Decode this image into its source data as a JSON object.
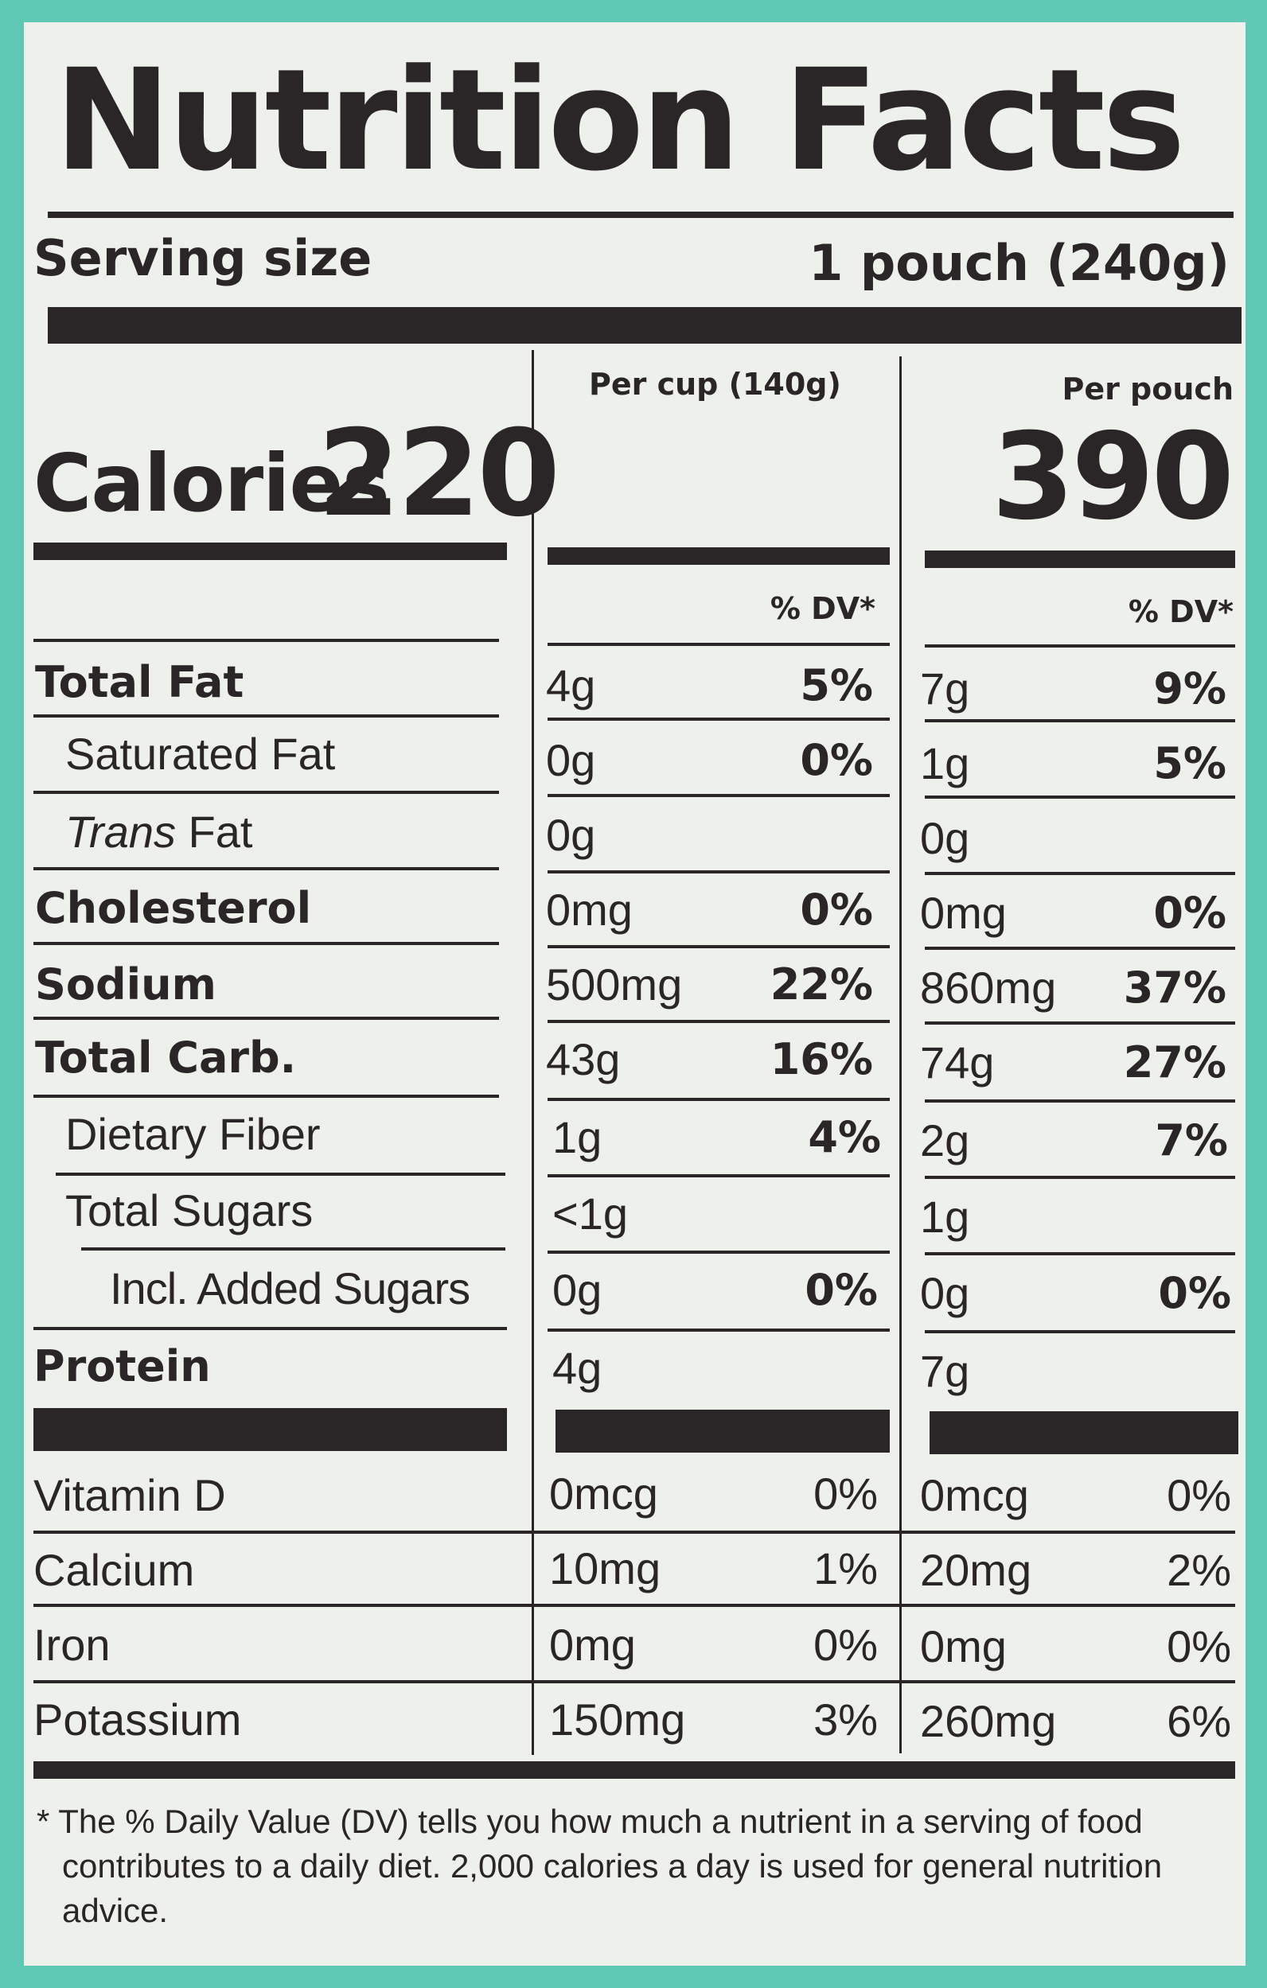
{
  "title": "Nutrition Facts",
  "serving": {
    "label": "Serving size",
    "value": "1 pouch (240g)"
  },
  "columns": {
    "per_cup": "Per cup (140g)",
    "per_pouch": "Per pouch"
  },
  "calories": {
    "label": "Calories",
    "per_cup": "220",
    "per_pouch": "390"
  },
  "dv_header": "% DV*",
  "nutrients": [
    {
      "label": "Total Fat",
      "cup_amt": "4g",
      "cup_dv": "5%",
      "pouch_amt": "7g",
      "pouch_dv": "9%"
    },
    {
      "label": "Saturated Fat",
      "cup_amt": "0g",
      "cup_dv": "0%",
      "pouch_amt": "1g",
      "pouch_dv": "5%"
    },
    {
      "label_italic": "Trans",
      "label_rest": " Fat",
      "cup_amt": "0g",
      "pouch_amt": "0g"
    },
    {
      "label": "Cholesterol",
      "cup_amt": "0mg",
      "cup_dv": "0%",
      "pouch_amt": "0mg",
      "pouch_dv": "0%"
    },
    {
      "label": "Sodium",
      "cup_amt": "500mg",
      "cup_dv": "22%",
      "pouch_amt": "860mg",
      "pouch_dv": "37%"
    },
    {
      "label": "Total Carb.",
      "cup_amt": "43g",
      "cup_dv": "16%",
      "pouch_amt": "74g",
      "pouch_dv": "27%"
    },
    {
      "label": "Dietary Fiber",
      "cup_amt": "1g",
      "cup_dv": "4%",
      "pouch_amt": "2g",
      "pouch_dv": "7%"
    },
    {
      "label": "Total Sugars",
      "cup_amt": "<1g",
      "pouch_amt": "1g"
    },
    {
      "label": "Incl. Added Sugars",
      "cup_amt": "0g",
      "cup_dv": "0%",
      "pouch_amt": "0g",
      "pouch_dv": "0%"
    },
    {
      "label": "Protein",
      "cup_amt": "4g",
      "pouch_amt": "7g"
    }
  ],
  "vitamins": [
    {
      "label": "Vitamin D",
      "cup_amt": "0mcg",
      "cup_dv": "0%",
      "pouch_amt": "0mcg",
      "pouch_dv": "0%"
    },
    {
      "label": "Calcium",
      "cup_amt": "10mg",
      "cup_dv": "1%",
      "pouch_amt": "20mg",
      "pouch_dv": "2%"
    },
    {
      "label": "Iron",
      "cup_amt": "0mg",
      "cup_dv": "0%",
      "pouch_amt": "0mg",
      "pouch_dv": "0%"
    },
    {
      "label": "Potassium",
      "cup_amt": "150mg",
      "cup_dv": "3%",
      "pouch_amt": "260mg",
      "pouch_dv": "6%"
    }
  ],
  "footnote": "* The % Daily Value (DV) tells you how much a nutrient in a serving of food contributes to a daily diet. 2,000 calories a day is used for general nutrition advice.",
  "colors": {
    "background": "#5ec8b5",
    "label": "#eef0ec",
    "ink": "#2a2526"
  }
}
